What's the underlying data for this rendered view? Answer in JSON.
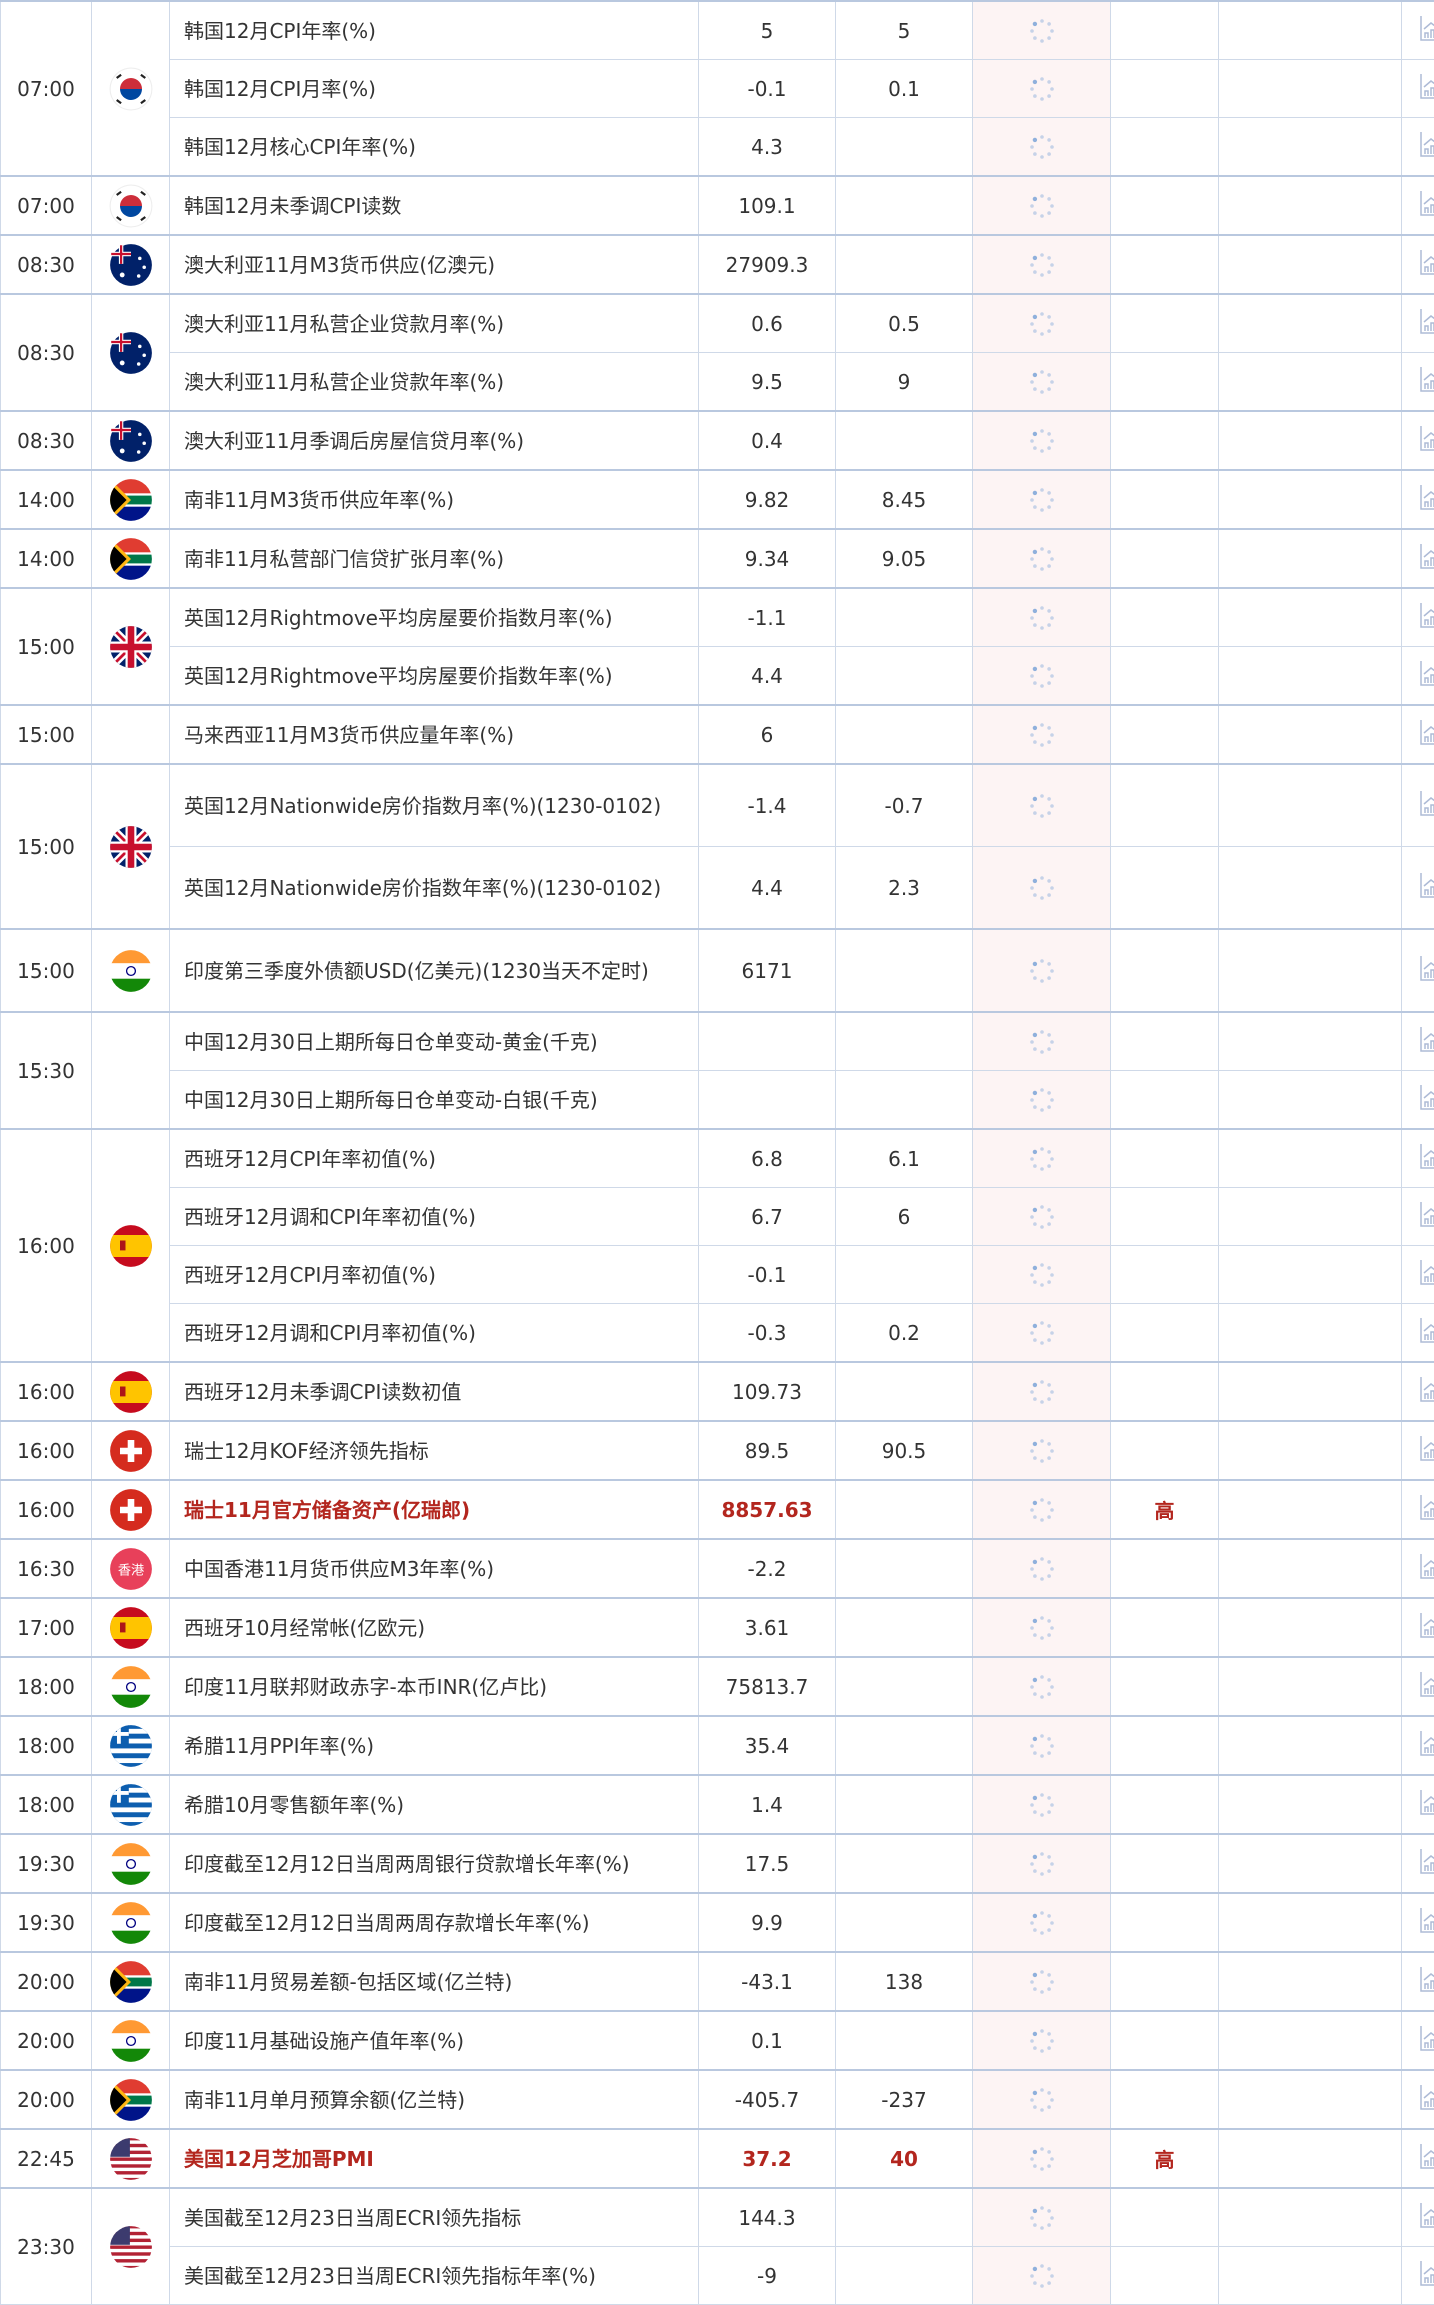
{
  "colors": {
    "highlight": "#b3261e",
    "border": "#cfd9e8",
    "actual_bg": "#fdf4f4",
    "spinner": "#8fb0dc",
    "chart_icon": "#aebbd6"
  },
  "groups": [
    {
      "time": "07:00",
      "flag": "korea",
      "events": [
        {
          "name": "韩国12月CPI年率(%)",
          "prev": "5",
          "forecast": "5"
        },
        {
          "name": "韩国12月CPI月率(%)",
          "prev": "-0.1",
          "forecast": "0.1"
        },
        {
          "name": "韩国12月核心CPI年率(%)",
          "prev": "4.3",
          "forecast": ""
        }
      ]
    },
    {
      "time": "07:00",
      "flag": "korea",
      "events": [
        {
          "name": "韩国12月未季调CPI读数",
          "prev": "109.1",
          "forecast": ""
        }
      ]
    },
    {
      "time": "08:30",
      "flag": "australia",
      "events": [
        {
          "name": "澳大利亚11月M3货币供应(亿澳元)",
          "prev": "27909.3",
          "forecast": ""
        }
      ]
    },
    {
      "time": "08:30",
      "flag": "australia",
      "events": [
        {
          "name": "澳大利亚11月私营企业贷款月率(%)",
          "prev": "0.6",
          "forecast": "0.5"
        },
        {
          "name": "澳大利亚11月私营企业贷款年率(%)",
          "prev": "9.5",
          "forecast": "9"
        }
      ]
    },
    {
      "time": "08:30",
      "flag": "australia",
      "events": [
        {
          "name": "澳大利亚11月季调后房屋信贷月率(%)",
          "prev": "0.4",
          "forecast": ""
        }
      ]
    },
    {
      "time": "14:00",
      "flag": "south-africa",
      "events": [
        {
          "name": "南非11月M3货币供应年率(%)",
          "prev": "9.82",
          "forecast": "8.45"
        }
      ]
    },
    {
      "time": "14:00",
      "flag": "south-africa",
      "events": [
        {
          "name": "南非11月私营部门信贷扩张月率(%)",
          "prev": "9.34",
          "forecast": "9.05"
        }
      ]
    },
    {
      "time": "15:00",
      "flag": "uk",
      "events": [
        {
          "name": "英国12月Rightmove平均房屋要价指数月率(%)",
          "prev": "-1.1",
          "forecast": ""
        },
        {
          "name": "英国12月Rightmove平均房屋要价指数年率(%)",
          "prev": "4.4",
          "forecast": ""
        }
      ]
    },
    {
      "time": "15:00",
      "flag": "",
      "events": [
        {
          "name": "马来西亚11月M3货币供应量年率(%)",
          "prev": "6",
          "forecast": ""
        }
      ]
    },
    {
      "time": "15:00",
      "flag": "uk",
      "events": [
        {
          "name": "英国12月Nationwide房价指数月率(%)(1230-0102)",
          "prev": "-1.4",
          "forecast": "-0.7",
          "tall": true
        },
        {
          "name": "英国12月Nationwide房价指数年率(%)(1230-0102)",
          "prev": "4.4",
          "forecast": "2.3",
          "tall": true
        }
      ]
    },
    {
      "time": "15:00",
      "flag": "india",
      "events": [
        {
          "name": "印度第三季度外债额USD(亿美元)(1230当天不定时)",
          "prev": "6171",
          "forecast": "",
          "tall": true
        }
      ]
    },
    {
      "time": "15:30",
      "flag": "",
      "events": [
        {
          "name": "中国12月30日上期所每日仓单变动-黄金(千克)",
          "prev": "",
          "forecast": ""
        },
        {
          "name": "中国12月30日上期所每日仓单变动-白银(千克)",
          "prev": "",
          "forecast": ""
        }
      ]
    },
    {
      "time": "16:00",
      "flag": "spain",
      "events": [
        {
          "name": "西班牙12月CPI年率初值(%)",
          "prev": "6.8",
          "forecast": "6.1"
        },
        {
          "name": "西班牙12月调和CPI年率初值(%)",
          "prev": "6.7",
          "forecast": "6"
        },
        {
          "name": "西班牙12月CPI月率初值(%)",
          "prev": "-0.1",
          "forecast": ""
        },
        {
          "name": "西班牙12月调和CPI月率初值(%)",
          "prev": "-0.3",
          "forecast": "0.2"
        }
      ]
    },
    {
      "time": "16:00",
      "flag": "spain",
      "events": [
        {
          "name": "西班牙12月未季调CPI读数初值",
          "prev": "109.73",
          "forecast": ""
        }
      ]
    },
    {
      "time": "16:00",
      "flag": "switzerland",
      "events": [
        {
          "name": "瑞士12月KOF经济领先指标",
          "prev": "89.5",
          "forecast": "90.5"
        }
      ]
    },
    {
      "time": "16:00",
      "flag": "switzerland",
      "events": [
        {
          "name": "瑞士11月官方储备资产(亿瑞郎)",
          "prev": "8857.63",
          "forecast": "",
          "importance": "高",
          "highlight": true
        }
      ]
    },
    {
      "time": "16:30",
      "flag": "hongkong",
      "flag_text": "香港",
      "events": [
        {
          "name": "中国香港11月货币供应M3年率(%)",
          "prev": "-2.2",
          "forecast": ""
        }
      ]
    },
    {
      "time": "17:00",
      "flag": "spain",
      "events": [
        {
          "name": "西班牙10月经常帐(亿欧元)",
          "prev": "3.61",
          "forecast": ""
        }
      ]
    },
    {
      "time": "18:00",
      "flag": "india",
      "events": [
        {
          "name": "印度11月联邦财政赤字-本币INR(亿卢比)",
          "prev": "75813.7",
          "forecast": ""
        }
      ]
    },
    {
      "time": "18:00",
      "flag": "greece",
      "events": [
        {
          "name": "希腊11月PPI年率(%)",
          "prev": "35.4",
          "forecast": ""
        }
      ]
    },
    {
      "time": "18:00",
      "flag": "greece",
      "events": [
        {
          "name": "希腊10月零售额年率(%)",
          "prev": "1.4",
          "forecast": ""
        }
      ]
    },
    {
      "time": "19:30",
      "flag": "india",
      "events": [
        {
          "name": "印度截至12月12日当周两周银行贷款增长年率(%)",
          "prev": "17.5",
          "forecast": ""
        }
      ]
    },
    {
      "time": "19:30",
      "flag": "india",
      "events": [
        {
          "name": "印度截至12月12日当周两周存款增长年率(%)",
          "prev": "9.9",
          "forecast": ""
        }
      ]
    },
    {
      "time": "20:00",
      "flag": "south-africa",
      "events": [
        {
          "name": "南非11月贸易差额-包括区域(亿兰特)",
          "prev": "-43.1",
          "forecast": "138"
        }
      ]
    },
    {
      "time": "20:00",
      "flag": "india",
      "events": [
        {
          "name": "印度11月基础设施产值年率(%)",
          "prev": "0.1",
          "forecast": ""
        }
      ]
    },
    {
      "time": "20:00",
      "flag": "south-africa",
      "events": [
        {
          "name": "南非11月单月预算余额(亿兰特)",
          "prev": "-405.7",
          "forecast": "-237"
        }
      ]
    },
    {
      "time": "22:45",
      "flag": "usa",
      "events": [
        {
          "name": "美国12月芝加哥PMI",
          "prev": "37.2",
          "forecast": "40",
          "importance": "高",
          "highlight": true
        }
      ]
    },
    {
      "time": "23:30",
      "flag": "usa",
      "events": [
        {
          "name": "美国截至12月23日当周ECRI领先指标",
          "prev": "144.3",
          "forecast": ""
        },
        {
          "name": "美国截至12月23日当周ECRI领先指标年率(%)",
          "prev": "-9",
          "forecast": ""
        }
      ]
    }
  ],
  "icons": {
    "actual": "loading-spinner-icon",
    "chart": "chart-trend-icon"
  }
}
